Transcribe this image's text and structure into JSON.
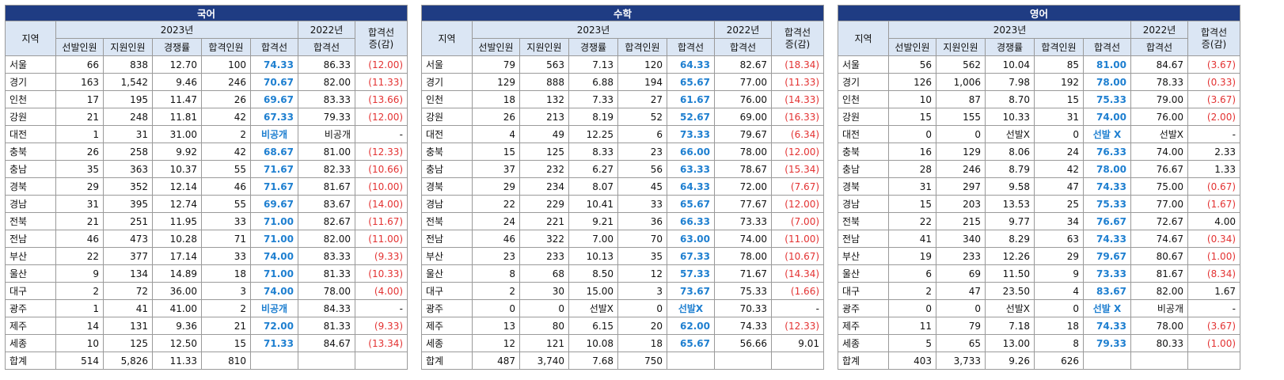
{
  "headers": {
    "region": "지역",
    "year_2023": "2023년",
    "year_2022": "2022년",
    "change_line1": "합격선",
    "change_line2": "증(감)",
    "selected": "선발인원",
    "applicants": "지원인원",
    "competition": "경쟁률",
    "passed": "합격인원",
    "cutoff": "합격선",
    "cutoff_2022": "합격선"
  },
  "colors": {
    "title_bg": "#1f3c83",
    "header_bg": "#dbe6f4",
    "cutoff_blue": "#1e7fd0",
    "decrease_red": "#e33232"
  },
  "tables": [
    {
      "subject": "국어",
      "rows": [
        {
          "region": "서울",
          "selected": "66",
          "applicants": "838",
          "competition": "12.70",
          "passed": "100",
          "cutoff": "74.33",
          "cutoff2022": "86.33",
          "change": "(12.00)"
        },
        {
          "region": "경기",
          "selected": "163",
          "applicants": "1,542",
          "competition": "9.46",
          "passed": "246",
          "cutoff": "70.67",
          "cutoff2022": "82.00",
          "change": "(11.33)"
        },
        {
          "region": "인천",
          "selected": "17",
          "applicants": "195",
          "competition": "11.47",
          "passed": "26",
          "cutoff": "69.67",
          "cutoff2022": "83.33",
          "change": "(13.66)"
        },
        {
          "region": "강원",
          "selected": "21",
          "applicants": "248",
          "competition": "11.81",
          "passed": "42",
          "cutoff": "67.33",
          "cutoff2022": "79.33",
          "change": "(12.00)"
        },
        {
          "region": "대전",
          "selected": "1",
          "applicants": "31",
          "competition": "31.00",
          "passed": "2",
          "cutoff": "비공개",
          "cutoff2022": "비공개",
          "change": "-"
        },
        {
          "region": "충북",
          "selected": "26",
          "applicants": "258",
          "competition": "9.92",
          "passed": "42",
          "cutoff": "68.67",
          "cutoff2022": "81.00",
          "change": "(12.33)"
        },
        {
          "region": "충남",
          "selected": "35",
          "applicants": "363",
          "competition": "10.37",
          "passed": "55",
          "cutoff": "71.67",
          "cutoff2022": "82.33",
          "change": "(10.66)"
        },
        {
          "region": "경북",
          "selected": "29",
          "applicants": "352",
          "competition": "12.14",
          "passed": "46",
          "cutoff": "71.67",
          "cutoff2022": "81.67",
          "change": "(10.00)"
        },
        {
          "region": "경남",
          "selected": "31",
          "applicants": "395",
          "competition": "12.74",
          "passed": "55",
          "cutoff": "69.67",
          "cutoff2022": "83.67",
          "change": "(14.00)"
        },
        {
          "region": "전북",
          "selected": "21",
          "applicants": "251",
          "competition": "11.95",
          "passed": "33",
          "cutoff": "71.00",
          "cutoff2022": "82.67",
          "change": "(11.67)"
        },
        {
          "region": "전남",
          "selected": "46",
          "applicants": "473",
          "competition": "10.28",
          "passed": "71",
          "cutoff": "71.00",
          "cutoff2022": "82.00",
          "change": "(11.00)"
        },
        {
          "region": "부산",
          "selected": "22",
          "applicants": "377",
          "competition": "17.14",
          "passed": "33",
          "cutoff": "74.00",
          "cutoff2022": "83.33",
          "change": "(9.33)"
        },
        {
          "region": "울산",
          "selected": "9",
          "applicants": "134",
          "competition": "14.89",
          "passed": "18",
          "cutoff": "71.00",
          "cutoff2022": "81.33",
          "change": "(10.33)"
        },
        {
          "region": "대구",
          "selected": "2",
          "applicants": "72",
          "competition": "36.00",
          "passed": "3",
          "cutoff": "74.00",
          "cutoff2022": "78.00",
          "change": "(4.00)"
        },
        {
          "region": "광주",
          "selected": "1",
          "applicants": "41",
          "competition": "41.00",
          "passed": "2",
          "cutoff": "비공개",
          "cutoff2022": "84.33",
          "change": "-"
        },
        {
          "region": "제주",
          "selected": "14",
          "applicants": "131",
          "competition": "9.36",
          "passed": "21",
          "cutoff": "72.00",
          "cutoff2022": "81.33",
          "change": "(9.33)"
        },
        {
          "region": "세종",
          "selected": "10",
          "applicants": "125",
          "competition": "12.50",
          "passed": "15",
          "cutoff": "71.33",
          "cutoff2022": "84.67",
          "change": "(13.34)"
        }
      ],
      "total": {
        "region": "합계",
        "selected": "514",
        "applicants": "5,826",
        "competition": "11.33",
        "passed": "810"
      }
    },
    {
      "subject": "수학",
      "rows": [
        {
          "region": "서울",
          "selected": "79",
          "applicants": "563",
          "competition": "7.13",
          "passed": "120",
          "cutoff": "64.33",
          "cutoff2022": "82.67",
          "change": "(18.34)"
        },
        {
          "region": "경기",
          "selected": "129",
          "applicants": "888",
          "competition": "6.88",
          "passed": "194",
          "cutoff": "65.67",
          "cutoff2022": "77.00",
          "change": "(11.33)"
        },
        {
          "region": "인천",
          "selected": "18",
          "applicants": "132",
          "competition": "7.33",
          "passed": "27",
          "cutoff": "61.67",
          "cutoff2022": "76.00",
          "change": "(14.33)"
        },
        {
          "region": "강원",
          "selected": "26",
          "applicants": "213",
          "competition": "8.19",
          "passed": "52",
          "cutoff": "52.67",
          "cutoff2022": "69.00",
          "change": "(16.33)"
        },
        {
          "region": "대전",
          "selected": "4",
          "applicants": "49",
          "competition": "12.25",
          "passed": "6",
          "cutoff": "73.33",
          "cutoff2022": "79.67",
          "change": "(6.34)"
        },
        {
          "region": "충북",
          "selected": "15",
          "applicants": "125",
          "competition": "8.33",
          "passed": "23",
          "cutoff": "66.00",
          "cutoff2022": "78.00",
          "change": "(12.00)"
        },
        {
          "region": "충남",
          "selected": "37",
          "applicants": "232",
          "competition": "6.27",
          "passed": "56",
          "cutoff": "63.33",
          "cutoff2022": "78.67",
          "change": "(15.34)"
        },
        {
          "region": "경북",
          "selected": "29",
          "applicants": "234",
          "competition": "8.07",
          "passed": "45",
          "cutoff": "64.33",
          "cutoff2022": "72.00",
          "change": "(7.67)"
        },
        {
          "region": "경남",
          "selected": "22",
          "applicants": "229",
          "competition": "10.41",
          "passed": "33",
          "cutoff": "65.67",
          "cutoff2022": "77.67",
          "change": "(12.00)"
        },
        {
          "region": "전북",
          "selected": "24",
          "applicants": "221",
          "competition": "9.21",
          "passed": "36",
          "cutoff": "66.33",
          "cutoff2022": "73.33",
          "change": "(7.00)"
        },
        {
          "region": "전남",
          "selected": "46",
          "applicants": "322",
          "competition": "7.00",
          "passed": "70",
          "cutoff": "63.00",
          "cutoff2022": "74.00",
          "change": "(11.00)"
        },
        {
          "region": "부산",
          "selected": "23",
          "applicants": "233",
          "competition": "10.13",
          "passed": "35",
          "cutoff": "67.33",
          "cutoff2022": "78.00",
          "change": "(10.67)"
        },
        {
          "region": "울산",
          "selected": "8",
          "applicants": "68",
          "competition": "8.50",
          "passed": "12",
          "cutoff": "57.33",
          "cutoff2022": "71.67",
          "change": "(14.34)"
        },
        {
          "region": "대구",
          "selected": "2",
          "applicants": "30",
          "competition": "15.00",
          "passed": "3",
          "cutoff": "73.67",
          "cutoff2022": "75.33",
          "change": "(1.66)"
        },
        {
          "region": "광주",
          "selected": "0",
          "applicants": "0",
          "competition": "선발X",
          "passed": "0",
          "cutoff": "선발X",
          "cutoff2022": "70.33",
          "change": "-"
        },
        {
          "region": "제주",
          "selected": "13",
          "applicants": "80",
          "competition": "6.15",
          "passed": "20",
          "cutoff": "62.00",
          "cutoff2022": "74.33",
          "change": "(12.33)"
        },
        {
          "region": "세종",
          "selected": "12",
          "applicants": "121",
          "competition": "10.08",
          "passed": "18",
          "cutoff": "65.67",
          "cutoff2022": "56.66",
          "change": "9.01"
        }
      ],
      "total": {
        "region": "합계",
        "selected": "487",
        "applicants": "3,740",
        "competition": "7.68",
        "passed": "750"
      }
    },
    {
      "subject": "영어",
      "rows": [
        {
          "region": "서울",
          "selected": "56",
          "applicants": "562",
          "competition": "10.04",
          "passed": "85",
          "cutoff": "81.00",
          "cutoff2022": "84.67",
          "change": "(3.67)"
        },
        {
          "region": "경기",
          "selected": "126",
          "applicants": "1,006",
          "competition": "7.98",
          "passed": "192",
          "cutoff": "78.00",
          "cutoff2022": "78.33",
          "change": "(0.33)"
        },
        {
          "region": "인천",
          "selected": "10",
          "applicants": "87",
          "competition": "8.70",
          "passed": "15",
          "cutoff": "75.33",
          "cutoff2022": "79.00",
          "change": "(3.67)"
        },
        {
          "region": "강원",
          "selected": "15",
          "applicants": "155",
          "competition": "10.33",
          "passed": "31",
          "cutoff": "74.00",
          "cutoff2022": "76.00",
          "change": "(2.00)"
        },
        {
          "region": "대전",
          "selected": "0",
          "applicants": "0",
          "competition": "선발X",
          "passed": "0",
          "cutoff": "선발 X",
          "cutoff2022": "선발X",
          "change": "-"
        },
        {
          "region": "충북",
          "selected": "16",
          "applicants": "129",
          "competition": "8.06",
          "passed": "24",
          "cutoff": "76.33",
          "cutoff2022": "74.00",
          "change": "2.33"
        },
        {
          "region": "충남",
          "selected": "28",
          "applicants": "246",
          "competition": "8.79",
          "passed": "42",
          "cutoff": "78.00",
          "cutoff2022": "76.67",
          "change": "1.33"
        },
        {
          "region": "경북",
          "selected": "31",
          "applicants": "297",
          "competition": "9.58",
          "passed": "47",
          "cutoff": "74.33",
          "cutoff2022": "75.00",
          "change": "(0.67)"
        },
        {
          "region": "경남",
          "selected": "15",
          "applicants": "203",
          "competition": "13.53",
          "passed": "25",
          "cutoff": "75.33",
          "cutoff2022": "77.00",
          "change": "(1.67)"
        },
        {
          "region": "전북",
          "selected": "22",
          "applicants": "215",
          "competition": "9.77",
          "passed": "34",
          "cutoff": "76.67",
          "cutoff2022": "72.67",
          "change": "4.00"
        },
        {
          "region": "전남",
          "selected": "41",
          "applicants": "340",
          "competition": "8.29",
          "passed": "63",
          "cutoff": "74.33",
          "cutoff2022": "74.67",
          "change": "(0.34)"
        },
        {
          "region": "부산",
          "selected": "19",
          "applicants": "233",
          "competition": "12.26",
          "passed": "29",
          "cutoff": "79.67",
          "cutoff2022": "80.67",
          "change": "(1.00)"
        },
        {
          "region": "울산",
          "selected": "6",
          "applicants": "69",
          "competition": "11.50",
          "passed": "9",
          "cutoff": "73.33",
          "cutoff2022": "81.67",
          "change": "(8.34)"
        },
        {
          "region": "대구",
          "selected": "2",
          "applicants": "47",
          "competition": "23.50",
          "passed": "4",
          "cutoff": "83.67",
          "cutoff2022": "82.00",
          "change": "1.67"
        },
        {
          "region": "광주",
          "selected": "0",
          "applicants": "0",
          "competition": "선발X",
          "passed": "0",
          "cutoff": "선발 X",
          "cutoff2022": "비공개",
          "change": "-"
        },
        {
          "region": "제주",
          "selected": "11",
          "applicants": "79",
          "competition": "7.18",
          "passed": "18",
          "cutoff": "74.33",
          "cutoff2022": "78.00",
          "change": "(3.67)"
        },
        {
          "region": "세종",
          "selected": "5",
          "applicants": "65",
          "competition": "13.00",
          "passed": "8",
          "cutoff": "79.33",
          "cutoff2022": "80.33",
          "change": "(1.00)"
        }
      ],
      "total": {
        "region": "합계",
        "selected": "403",
        "applicants": "3,733",
        "competition": "9.26",
        "passed": "626"
      }
    }
  ]
}
